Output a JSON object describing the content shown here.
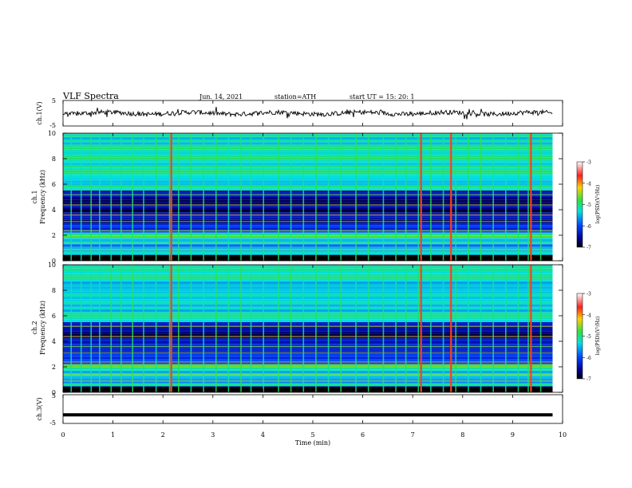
{
  "header": {
    "title": "VLF  Spectra",
    "date": "Jun. 14, 2021",
    "station": "station=ATH",
    "start": "start  UT  =    15: 20: 1"
  },
  "chart_data": [
    {
      "type": "line",
      "panel": "ch1-waveform",
      "ylabel": "ch.1(V)",
      "y_ticks": [
        "5",
        "-5"
      ],
      "ylim": [
        -5,
        5
      ],
      "x_range_min": [
        0,
        9.8
      ],
      "approx_level": 0,
      "color": "#000000"
    },
    {
      "type": "heatmap",
      "panel": "ch1-spectrogram",
      "ylabel_channel": "ch.1",
      "ylabel": "Frequency  (kHz)",
      "y_ticks": [
        "0",
        "2",
        "4",
        "6",
        "8",
        "10"
      ],
      "ylim_khz": [
        0,
        10
      ],
      "x_range_min": [
        0,
        9.8
      ],
      "colorbar": {
        "label": "log(PSD)(V²/Hz)",
        "ticks": [
          "-3",
          "-4",
          "-5",
          "-6",
          "-7"
        ],
        "range": [
          -7,
          -3
        ]
      },
      "band_levels_log_psd": [
        {
          "f_khz": [
            0,
            0.3
          ],
          "value": -7
        },
        {
          "f_khz": [
            0.3,
            1.8
          ],
          "value": -5.6
        },
        {
          "f_khz": [
            1.8,
            2.2
          ],
          "value": -4.9
        },
        {
          "f_khz": [
            2.2,
            3.0
          ],
          "value": -6.1
        },
        {
          "f_khz": [
            3.0,
            5.5
          ],
          "value": -6.6
        },
        {
          "f_khz": [
            5.5,
            10
          ],
          "value": -5.2
        }
      ],
      "sferic_times_min": [
        0.15,
        0.35,
        0.55,
        0.72,
        0.95,
        1.15,
        1.38,
        1.6,
        1.85,
        2.12,
        2.3,
        2.55,
        2.8,
        3.05,
        3.3,
        3.55,
        3.75,
        4.0,
        4.3,
        4.55,
        4.8,
        5.05,
        5.3,
        5.55,
        5.85,
        6.1,
        6.4,
        6.65,
        6.85,
        7.1,
        7.35,
        7.6,
        7.85,
        8.1,
        8.35,
        8.6,
        8.85,
        9.1,
        9.3,
        9.55
      ],
      "strong_sferic_times_min": [
        2.15,
        7.15,
        7.75,
        9.35
      ]
    },
    {
      "type": "heatmap",
      "panel": "ch2-spectrogram",
      "ylabel_channel": "ch.2",
      "ylabel": "Frequency  (kHz)",
      "y_ticks": [
        "0",
        "2",
        "4",
        "6",
        "8",
        "10"
      ],
      "ylim_khz": [
        0,
        10
      ],
      "x_range_min": [
        0,
        9.8
      ],
      "colorbar": {
        "label": "log(PSD)(V²/Hz)",
        "ticks": [
          "-3",
          "-4",
          "-5",
          "-6",
          "-7"
        ],
        "range": [
          -7,
          -3
        ]
      },
      "band_levels_log_psd": [
        {
          "f_khz": [
            0,
            0.3
          ],
          "value": -7
        },
        {
          "f_khz": [
            0.3,
            1.8
          ],
          "value": -5.4
        },
        {
          "f_khz": [
            1.8,
            2.2
          ],
          "value": -4.9
        },
        {
          "f_khz": [
            2.2,
            3.0
          ],
          "value": -5.9
        },
        {
          "f_khz": [
            3.0,
            5.5
          ],
          "value": -6.5
        },
        {
          "f_khz": [
            5.5,
            10
          ],
          "value": -5.3
        }
      ],
      "sferic_times_min": [
        0.15,
        0.35,
        0.55,
        0.72,
        0.95,
        1.15,
        1.38,
        1.6,
        1.85,
        2.12,
        2.3,
        2.55,
        2.8,
        3.05,
        3.3,
        3.55,
        3.75,
        4.0,
        4.3,
        4.55,
        4.8,
        5.05,
        5.3,
        5.55,
        5.85,
        6.1,
        6.4,
        6.65,
        6.85,
        7.1,
        7.35,
        7.6,
        7.85,
        8.1,
        8.35,
        8.6,
        8.85,
        9.1,
        9.3,
        9.55
      ],
      "strong_sferic_times_min": [
        2.15,
        7.15,
        7.75,
        9.35
      ]
    },
    {
      "type": "line",
      "panel": "ch3-waveform",
      "ylabel": "ch.3(V)",
      "y_ticks": [
        "5",
        "-5"
      ],
      "ylim": [
        -5,
        5
      ],
      "x_range_min": [
        0,
        9.8
      ],
      "level": -2,
      "xlabel": "Time  (min)",
      "x_ticks": [
        "0",
        "1",
        "2",
        "3",
        "4",
        "5",
        "6",
        "7",
        "8",
        "9",
        "10"
      ],
      "xlim": [
        0,
        10
      ]
    }
  ]
}
